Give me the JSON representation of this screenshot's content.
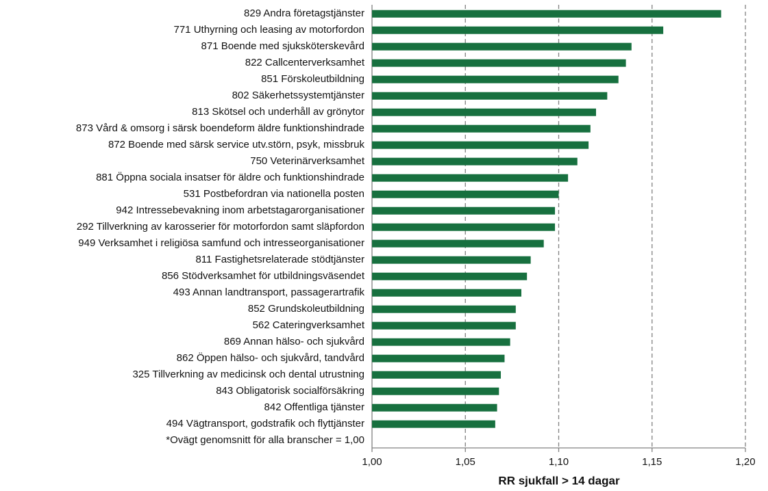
{
  "chart_data": {
    "type": "barh",
    "xlabel": "RR sjukfall > 14 dagar",
    "categories": [
      "829 Andra företagstjänster",
      "771 Uthyrning och leasing av motorfordon",
      "871 Boende med sjuksköterskevård",
      "822 Callcenterverksamhet",
      "851 Förskoleutbildning",
      "802 Säkerhetssystemtjänster",
      "813 Skötsel och underhåll av grönytor",
      "873 Vård & omsorg i särsk boendeform äldre funktionshindrade",
      "872 Boende med särsk service utv.störn, psyk, missbruk",
      "750 Veterinärverksamhet",
      "881 Öppna sociala insatser för äldre och funktionshindrade",
      "531 Postbefordran via nationella posten",
      "942 Intressebevakning inom arbetstagarorganisationer",
      "292 Tillverkning av karosserier för motorfordon samt släpfordon",
      "949 Verksamhet i religiösa samfund och intresseorganisationer",
      "811 Fastighetsrelaterade stödtjänster",
      "856 Stödverksamhet för utbildningsväsendet",
      "493 Annan landtransport, passagerartrafik",
      "852 Grundskoleutbildning",
      "562 Cateringverksamhet",
      "869 Annan hälso- och sjukvård",
      "862 Öppen hälso- och sjukvård, tandvård",
      "325 Tillverkning av medicinsk och dental utrustning",
      "843 Obligatorisk socialförsäkring",
      "842 Offentliga tjänster",
      "494 Vägtransport, godstrafik och flyttjänster",
      "*Ovägt genomsnitt för alla branscher = 1,00"
    ],
    "values": [
      1.187,
      1.156,
      1.139,
      1.136,
      1.132,
      1.126,
      1.12,
      1.117,
      1.116,
      1.11,
      1.105,
      1.1,
      1.098,
      1.098,
      1.092,
      1.085,
      1.083,
      1.08,
      1.077,
      1.077,
      1.074,
      1.071,
      1.069,
      1.068,
      1.067,
      1.066,
      null
    ],
    "color": "#17703f",
    "xlim": [
      1.0,
      1.2
    ],
    "xticks": [
      {
        "value": 1.0,
        "label": "1,00"
      },
      {
        "value": 1.05,
        "label": "1,05"
      },
      {
        "value": 1.1,
        "label": "1,10"
      },
      {
        "value": 1.15,
        "label": "1,15"
      },
      {
        "value": 1.2,
        "label": "1,20"
      }
    ],
    "grid": true
  }
}
